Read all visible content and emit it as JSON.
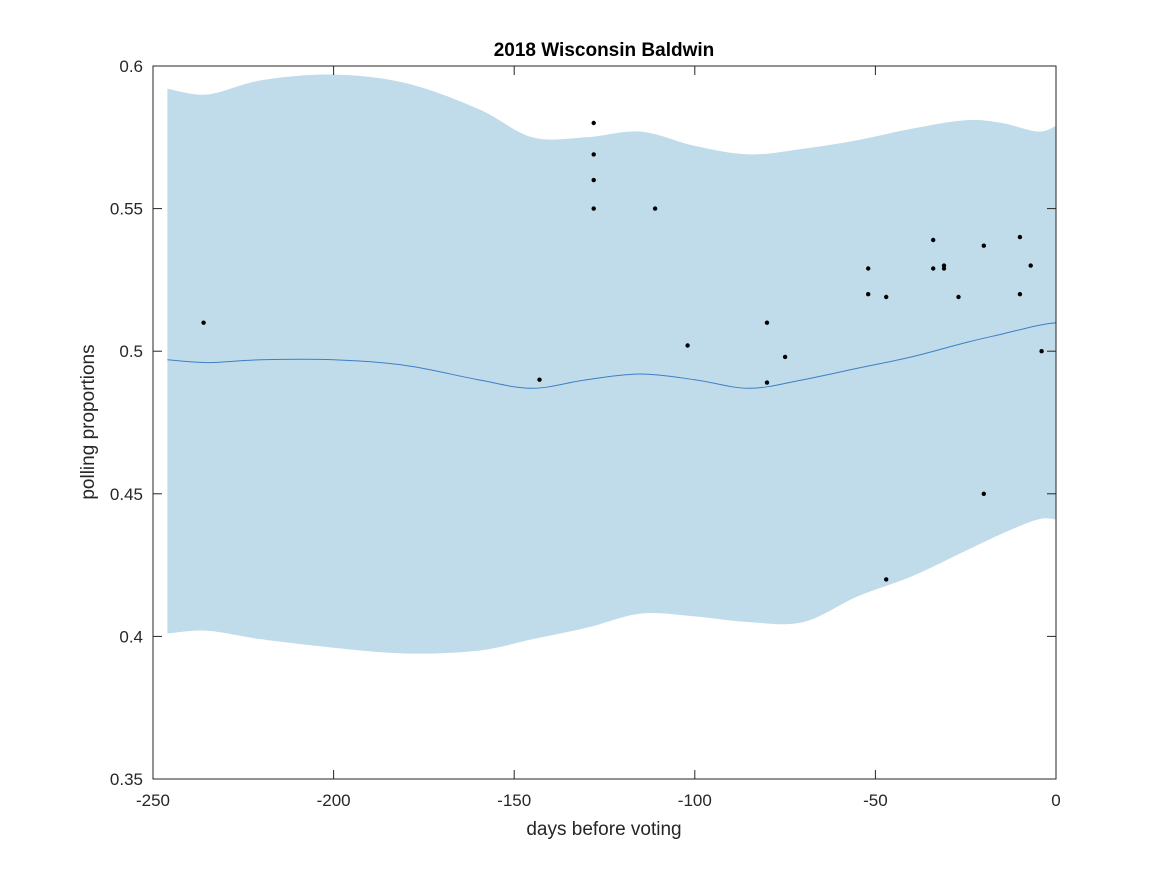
{
  "chart_data": {
    "type": "scatter",
    "title": "2018 Wisconsin Baldwin",
    "xlabel": "days before voting",
    "ylabel": "polling proportions",
    "xlim": [
      -250,
      0
    ],
    "ylim": [
      0.35,
      0.6
    ],
    "xticks": [
      -250,
      -200,
      -150,
      -100,
      -50,
      0
    ],
    "xtick_labels": [
      "-250",
      "-200",
      "-150",
      "-100",
      "-50",
      "0"
    ],
    "yticks": [
      0.35,
      0.4,
      0.45,
      0.5,
      0.55,
      0.6
    ],
    "ytick_labels": [
      "0.35",
      "0.4",
      "0.45",
      "0.5",
      "0.55",
      "0.6"
    ],
    "grid": false,
    "colors": {
      "band": "#c0dcea",
      "trend": "#3d7fc4",
      "points": "#000000",
      "axes": "#262626"
    },
    "band": {
      "x": [
        -246,
        -235,
        -220,
        -200,
        -180,
        -160,
        -145,
        -130,
        -115,
        -100,
        -85,
        -70,
        -55,
        -40,
        -25,
        -15,
        -5,
        0
      ],
      "upper": [
        0.592,
        0.59,
        0.595,
        0.597,
        0.594,
        0.585,
        0.575,
        0.575,
        0.577,
        0.572,
        0.569,
        0.571,
        0.574,
        0.578,
        0.581,
        0.58,
        0.577,
        0.579
      ],
      "lower": [
        0.401,
        0.402,
        0.399,
        0.396,
        0.394,
        0.395,
        0.399,
        0.403,
        0.408,
        0.407,
        0.405,
        0.405,
        0.414,
        0.421,
        0.43,
        0.436,
        0.441,
        0.441
      ]
    },
    "trend": {
      "x": [
        -246,
        -235,
        -220,
        -200,
        -180,
        -160,
        -145,
        -130,
        -115,
        -100,
        -85,
        -70,
        -55,
        -40,
        -25,
        -15,
        -5,
        0
      ],
      "y": [
        0.497,
        0.496,
        0.497,
        0.497,
        0.495,
        0.49,
        0.487,
        0.49,
        0.492,
        0.49,
        0.487,
        0.49,
        0.494,
        0.498,
        0.503,
        0.506,
        0.509,
        0.51
      ]
    },
    "points": [
      {
        "x": -236,
        "y": 0.51
      },
      {
        "x": -143,
        "y": 0.49
      },
      {
        "x": -128,
        "y": 0.58
      },
      {
        "x": -128,
        "y": 0.569
      },
      {
        "x": -128,
        "y": 0.56
      },
      {
        "x": -128,
        "y": 0.55
      },
      {
        "x": -111,
        "y": 0.55
      },
      {
        "x": -102,
        "y": 0.502
      },
      {
        "x": -80,
        "y": 0.51
      },
      {
        "x": -80,
        "y": 0.489
      },
      {
        "x": -75,
        "y": 0.498
      },
      {
        "x": -52,
        "y": 0.529
      },
      {
        "x": -52,
        "y": 0.52
      },
      {
        "x": -47,
        "y": 0.519
      },
      {
        "x": -47,
        "y": 0.42
      },
      {
        "x": -34,
        "y": 0.539
      },
      {
        "x": -34,
        "y": 0.529
      },
      {
        "x": -31,
        "y": 0.53
      },
      {
        "x": -31,
        "y": 0.529
      },
      {
        "x": -27,
        "y": 0.519
      },
      {
        "x": -20,
        "y": 0.537
      },
      {
        "x": -20,
        "y": 0.45
      },
      {
        "x": -10,
        "y": 0.54
      },
      {
        "x": -10,
        "y": 0.52
      },
      {
        "x": -7,
        "y": 0.53
      },
      {
        "x": -4,
        "y": 0.5
      }
    ]
  }
}
